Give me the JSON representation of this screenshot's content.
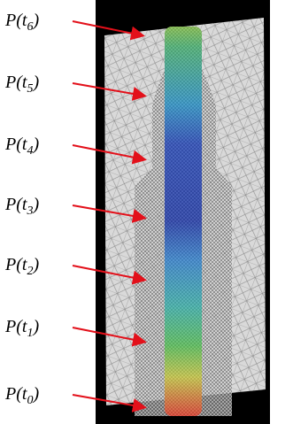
{
  "labels": [
    {
      "base": "P(t",
      "sub": "6",
      "end": ")"
    },
    {
      "base": "P(t",
      "sub": "5",
      "end": ")"
    },
    {
      "base": "P(t",
      "sub": "4",
      "end": ")"
    },
    {
      "base": "P(t",
      "sub": "3",
      "end": ")"
    },
    {
      "base": "P(t",
      "sub": "2",
      "end": ")"
    },
    {
      "base": "P(t",
      "sub": "1",
      "end": ")"
    },
    {
      "base": "P(t",
      "sub": "0",
      "end": ")"
    }
  ]
}
